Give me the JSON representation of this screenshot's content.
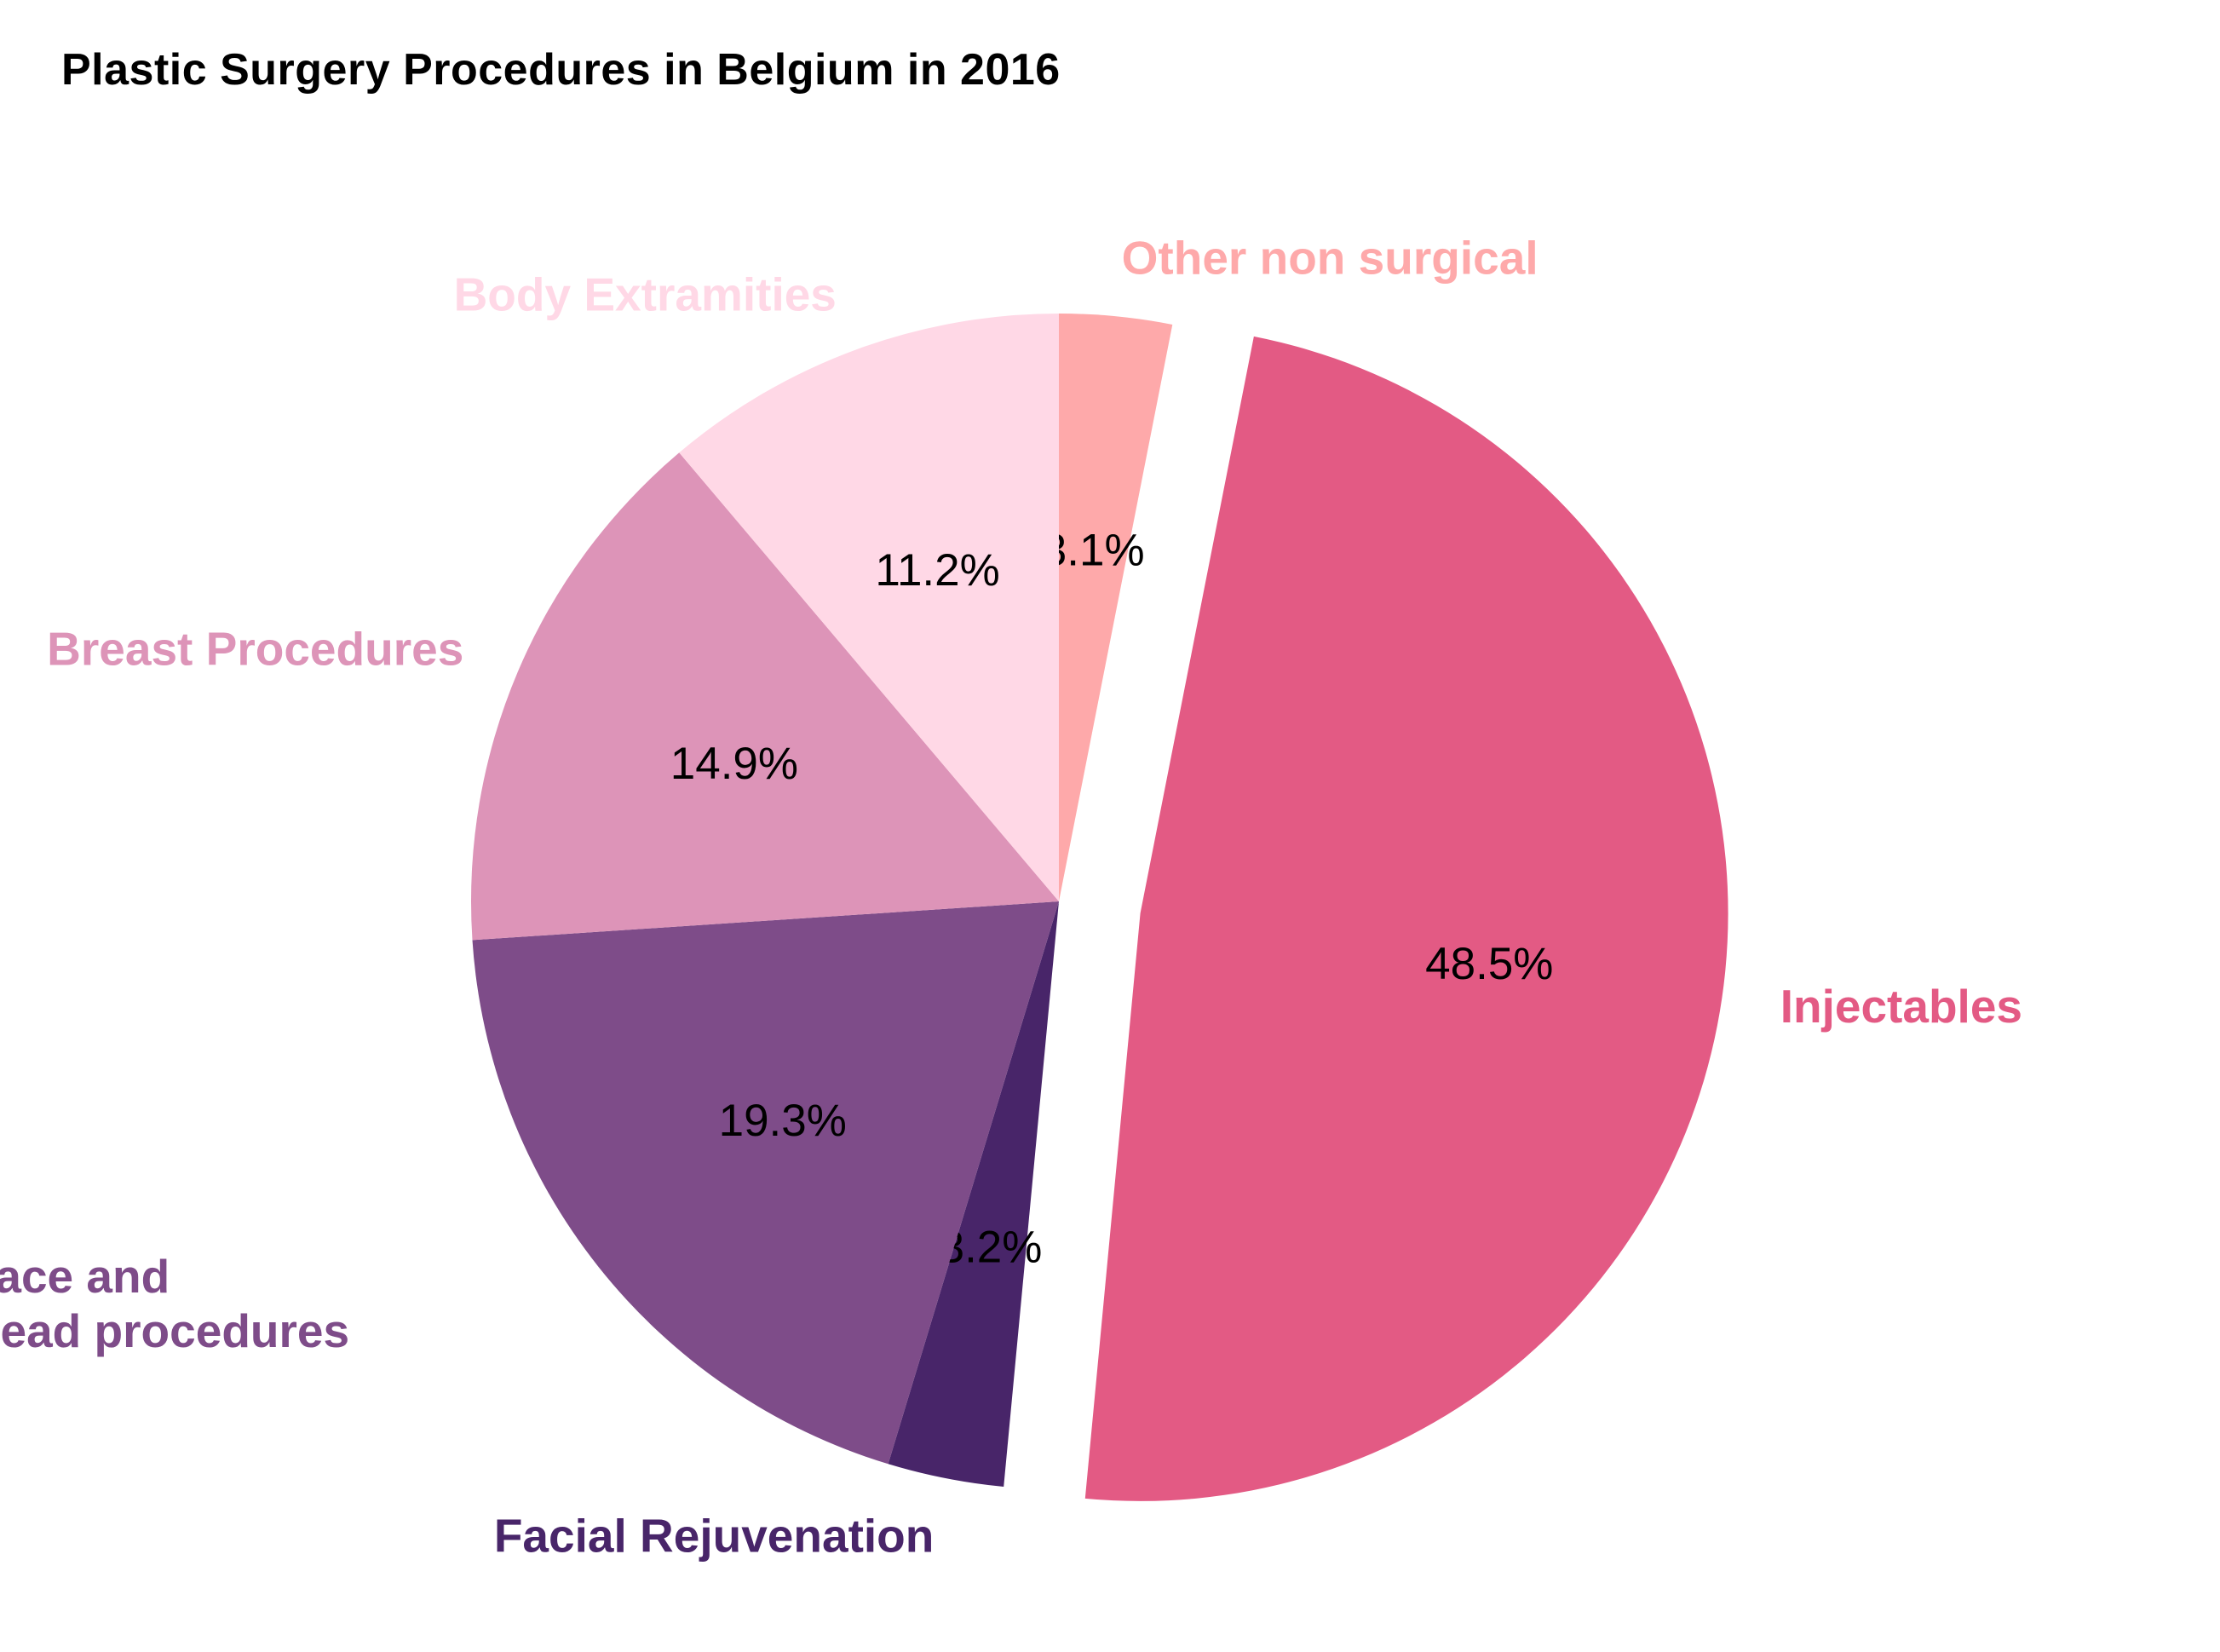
{
  "chart_data": {
    "type": "pie",
    "title": "Plastic Surgery Procedures in Belgium in 2016",
    "slices": [
      {
        "label": "Other non surgical",
        "value": 3.1,
        "pct_text": "3.1%",
        "color": "#FEA9AA",
        "explode": false
      },
      {
        "label": "Injectables",
        "value": 48.5,
        "pct_text": "48.5%",
        "color": "#E35A84",
        "explode": true
      },
      {
        "label": "Facial Rejuvenation",
        "value": 3.2,
        "pct_text": "3.2%",
        "color": "#482569",
        "explode": false
      },
      {
        "label": "Face and\nHead procedures",
        "value": 19.3,
        "pct_text": "19.3%",
        "color": "#7E4C89",
        "explode": false
      },
      {
        "label": "Breast Procedures",
        "value": 14.9,
        "pct_text": "14.9%",
        "color": "#DD94B8",
        "explode": false
      },
      {
        "label": "Body Extramities",
        "value": 11.2,
        "pct_text": "11.2%",
        "color": "#FFD8E6",
        "explode": false
      }
    ],
    "start_angle_deg": 90,
    "direction": "clockwise",
    "legend": "none"
  }
}
